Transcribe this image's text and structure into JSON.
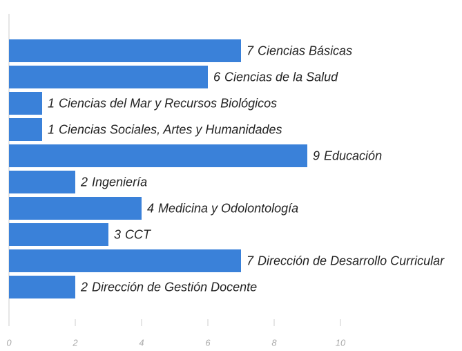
{
  "chart_data": {
    "type": "barh",
    "categories": [
      "Ciencias Básicas",
      "Ciencias de la Salud",
      "Ciencias del Mar y Recursos Biológicos",
      "Ciencias Sociales, Artes y Humanidades",
      "Educación",
      "Ingeniería",
      "Medicina y Odolontología",
      "CCT",
      "Dirección de Desarrollo Curricular",
      "Dirección de Gestión Docente"
    ],
    "values": [
      7,
      6,
      1,
      1,
      9,
      2,
      4,
      3,
      7,
      2
    ],
    "color": "#3a81d9",
    "xlim": [
      0,
      10
    ],
    "xticks": [
      0,
      2,
      4,
      6,
      8,
      10
    ]
  }
}
